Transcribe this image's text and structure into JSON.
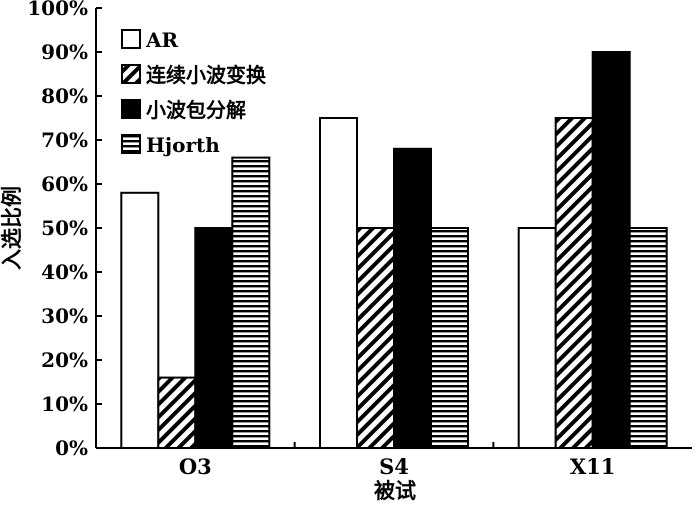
{
  "chart_data": {
    "type": "bar",
    "title": "",
    "xlabel": "被试",
    "ylabel": "入选比例",
    "categories": [
      "O3",
      "S4",
      "X11"
    ],
    "ylim": [
      0,
      100
    ],
    "yticks": [
      0,
      10,
      20,
      30,
      40,
      50,
      60,
      70,
      80,
      90,
      100
    ],
    "ytick_labels": [
      "0%",
      "10%",
      "20%",
      "30%",
      "40%",
      "50%",
      "60%",
      "70%",
      "80%",
      "90%",
      "100%"
    ],
    "grid": false,
    "legend_position": "top-left",
    "series": [
      {
        "name": "AR",
        "values": [
          58,
          75,
          50
        ],
        "pattern": "white",
        "color": "#ffffff"
      },
      {
        "name": "连续小波变换",
        "values": [
          16,
          50,
          75
        ],
        "pattern": "diagonal",
        "color": "#000000"
      },
      {
        "name": "小波包分解",
        "values": [
          50,
          68,
          90
        ],
        "pattern": "solid",
        "color": "#000000"
      },
      {
        "name": "Hjorth",
        "values": [
          66,
          50,
          50
        ],
        "pattern": "horizontal",
        "color": "#000000"
      }
    ]
  }
}
